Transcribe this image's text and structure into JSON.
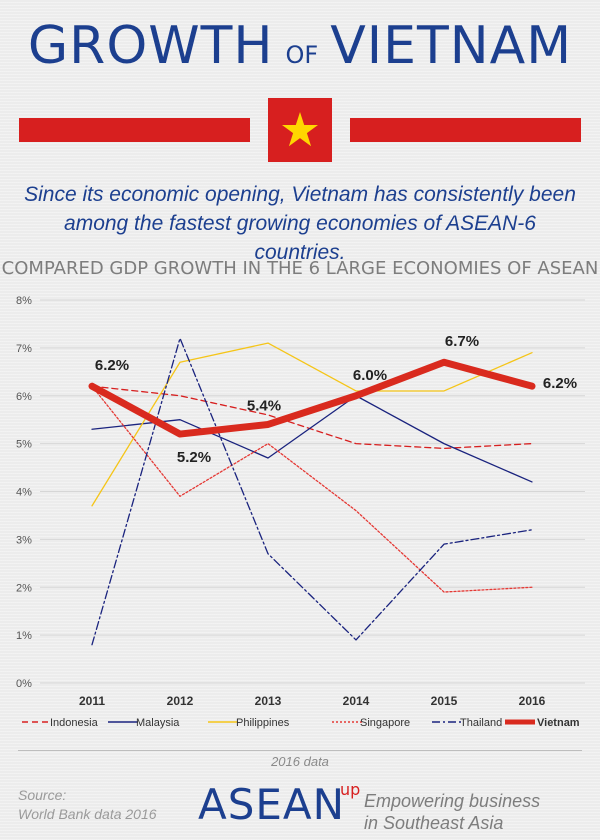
{
  "header": {
    "title_part1": "GROWTH",
    "title_connector": "OF",
    "title_part2": "VIETNAM",
    "subtitle_line1": "Since its economic opening, Vietnam has consistently been",
    "subtitle_line2": "among the fastest growing economies of ASEAN-6 countries."
  },
  "colors": {
    "brand_blue": "#1c3f8f",
    "flag_red": "#d71f1f",
    "flag_star": "#ffd700"
  },
  "chart_data": {
    "type": "line",
    "title": "COMPARED GDP GROWTH IN THE 6 LARGE ECONOMIES OF ASEAN",
    "categories": [
      "2011",
      "2012",
      "2013",
      "2014",
      "2015",
      "2016"
    ],
    "ylim": [
      0,
      8
    ],
    "yticks": [
      "0%",
      "1%",
      "2%",
      "3%",
      "4%",
      "5%",
      "6%",
      "7%",
      "8%"
    ],
    "legend_position": "bottom",
    "series": [
      {
        "name": "Indonesia",
        "values": [
          6.2,
          6.0,
          5.6,
          5.0,
          4.9,
          5.0
        ],
        "color": "#d71f1f",
        "style": "dashed"
      },
      {
        "name": "Malaysia",
        "values": [
          5.3,
          5.5,
          4.7,
          6.0,
          5.0,
          4.2
        ],
        "color": "#1a237e",
        "style": "solid"
      },
      {
        "name": "Philippines",
        "values": [
          3.7,
          6.7,
          7.1,
          6.1,
          6.1,
          6.9
        ],
        "color": "#f5c518",
        "style": "solid"
      },
      {
        "name": "Singapore",
        "values": [
          6.2,
          3.9,
          5.0,
          3.6,
          1.9,
          2.0
        ],
        "color": "#e53935",
        "style": "dotted"
      },
      {
        "name": "Thailand",
        "values": [
          0.8,
          7.2,
          2.7,
          0.9,
          2.9,
          3.2
        ],
        "color": "#1a237e",
        "style": "dashdot"
      },
      {
        "name": "Vietnam",
        "values": [
          6.2,
          5.2,
          5.4,
          6.0,
          6.7,
          6.2
        ],
        "color": "#d92a1e",
        "style": "bold"
      }
    ],
    "data_labels": [
      "6.2%",
      "5.2%",
      "5.4%",
      "6.0%",
      "6.7%",
      "6.2%"
    ]
  },
  "footer": {
    "data_note": "2016 data",
    "source_line1": "Source:",
    "source_line2": "World Bank data 2016",
    "brand": "ASEAN",
    "brand_sup": "up",
    "tagline_line1": "Empowering business",
    "tagline_line2": "in Southeast Asia"
  }
}
